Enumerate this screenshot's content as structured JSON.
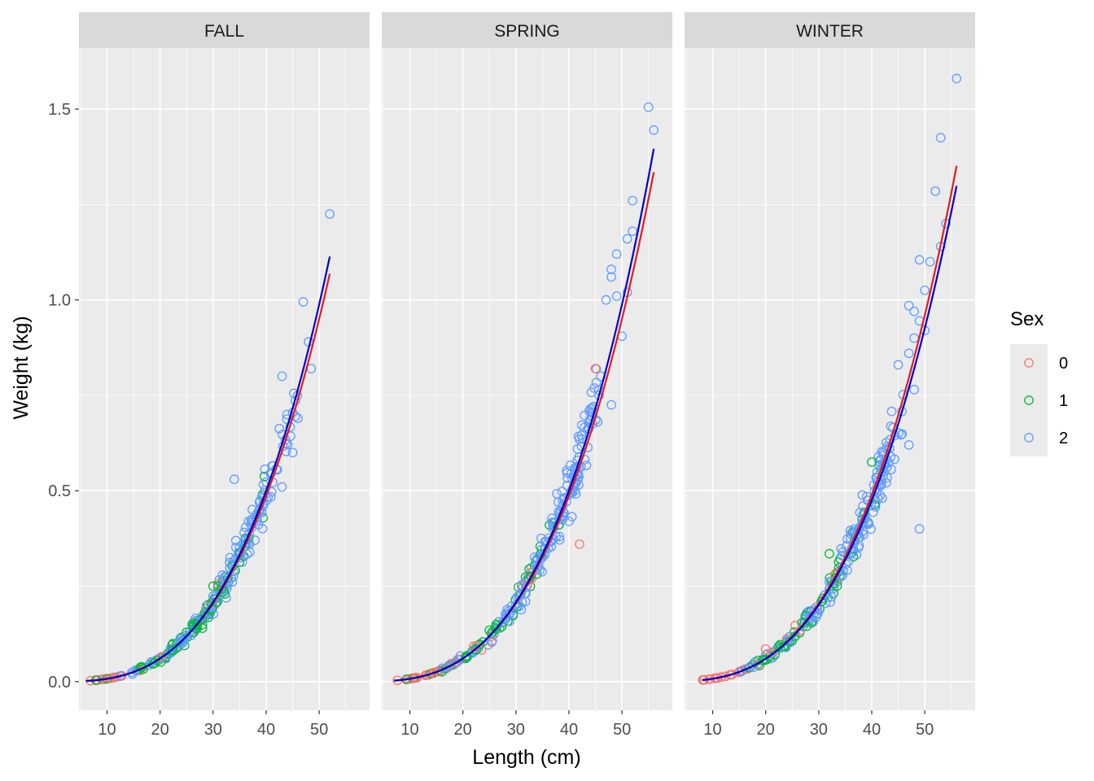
{
  "chart_data": {
    "type": "scatter",
    "xlabel": "Length (cm)",
    "ylabel": "Weight (kg)",
    "xlim": [
      4.7,
      59.5
    ],
    "ylim": [
      -0.075,
      1.66
    ],
    "x_ticks": [
      10,
      20,
      30,
      40,
      50
    ],
    "y_ticks": [
      0.0,
      0.5,
      1.0,
      1.5
    ],
    "y_tick_labels": [
      "0.0",
      "0.5",
      "1.0",
      "1.5"
    ],
    "grid": true,
    "legend": {
      "title": "Sex",
      "position": "right",
      "entries": [
        {
          "label": "0",
          "color": "#F8766D"
        },
        {
          "label": "1",
          "color": "#00BA38"
        },
        {
          "label": "2",
          "color": "#619CFF"
        }
      ]
    },
    "colors": {
      "panel_bg": "#EBEBEB",
      "strip_bg": "#D9D9D9",
      "grid": "#FFFFFF",
      "fit_line_a": "#E41A1C",
      "fit_line_b": "#0000CC"
    },
    "panels": [
      {
        "name": "FALL",
        "fit_a": {
          "a": 7.6e-06,
          "b": 3.0,
          "x_range": [
            6,
            52
          ]
        },
        "fit_b": {
          "a": 6.5e-06,
          "b": 3.05,
          "x_range": [
            6,
            52
          ]
        },
        "outliers": [
          {
            "x": 52,
            "y": 1.225,
            "sex": "2"
          },
          {
            "x": 47,
            "y": 0.995,
            "sex": "2"
          },
          {
            "x": 48,
            "y": 0.89,
            "sex": "2"
          },
          {
            "x": 48.5,
            "y": 0.82,
            "sex": "2"
          },
          {
            "x": 43,
            "y": 0.8,
            "sex": "2"
          },
          {
            "x": 46,
            "y": 0.69,
            "sex": "2"
          },
          {
            "x": 45,
            "y": 0.6,
            "sex": "2"
          },
          {
            "x": 43,
            "y": 0.51,
            "sex": "2"
          },
          {
            "x": 34,
            "y": 0.53,
            "sex": "2"
          },
          {
            "x": 36,
            "y": 0.37,
            "sex": "2"
          },
          {
            "x": 30,
            "y": 0.25,
            "sex": "1"
          },
          {
            "x": 28,
            "y": 0.14,
            "sex": "1"
          }
        ],
        "clusters": [
          {
            "from": 6,
            "to": 14,
            "n": 22,
            "spread": 0.06,
            "mix": [
              0.8,
              0.1,
              0.1
            ]
          },
          {
            "from": 14,
            "to": 22,
            "n": 34,
            "spread": 0.14,
            "mix": [
              0.15,
              0.45,
              0.4
            ]
          },
          {
            "from": 22,
            "to": 32,
            "n": 95,
            "spread": 0.13,
            "mix": [
              0.05,
              0.45,
              0.5
            ]
          },
          {
            "from": 32,
            "to": 40,
            "n": 80,
            "spread": 0.12,
            "mix": [
              0.0,
              0.15,
              0.85
            ]
          },
          {
            "from": 40,
            "to": 46,
            "n": 28,
            "spread": 0.1,
            "mix": [
              0.0,
              0.0,
              1.0
            ]
          }
        ]
      },
      {
        "name": "SPRING",
        "fit_a": {
          "a": 7.6e-06,
          "b": 3.0,
          "x_range": [
            7,
            56
          ]
        },
        "fit_b": {
          "a": 6.5e-06,
          "b": 3.05,
          "x_range": [
            7,
            56
          ]
        },
        "outliers": [
          {
            "x": 55,
            "y": 1.505,
            "sex": "2"
          },
          {
            "x": 56,
            "y": 1.445,
            "sex": "2"
          },
          {
            "x": 52,
            "y": 1.26,
            "sex": "2"
          },
          {
            "x": 52,
            "y": 1.18,
            "sex": "2"
          },
          {
            "x": 51,
            "y": 1.16,
            "sex": "2"
          },
          {
            "x": 49,
            "y": 1.12,
            "sex": "2"
          },
          {
            "x": 48,
            "y": 1.08,
            "sex": "2"
          },
          {
            "x": 48,
            "y": 1.06,
            "sex": "2"
          },
          {
            "x": 49,
            "y": 1.01,
            "sex": "2"
          },
          {
            "x": 47,
            "y": 1.0,
            "sex": "2"
          },
          {
            "x": 51,
            "y": 1.02,
            "sex": "2"
          },
          {
            "x": 50,
            "y": 0.905,
            "sex": "2"
          },
          {
            "x": 45,
            "y": 0.82,
            "sex": "0"
          },
          {
            "x": 46,
            "y": 0.8,
            "sex": "2"
          },
          {
            "x": 48,
            "y": 0.725,
            "sex": "2"
          },
          {
            "x": 42,
            "y": 0.36,
            "sex": "0"
          },
          {
            "x": 40,
            "y": 0.42,
            "sex": "2"
          }
        ],
        "clusters": [
          {
            "from": 7,
            "to": 16,
            "n": 28,
            "spread": 0.06,
            "mix": [
              0.8,
              0.1,
              0.1
            ]
          },
          {
            "from": 16,
            "to": 26,
            "n": 45,
            "spread": 0.14,
            "mix": [
              0.15,
              0.45,
              0.4
            ]
          },
          {
            "from": 26,
            "to": 34,
            "n": 60,
            "spread": 0.13,
            "mix": [
              0.05,
              0.35,
              0.6
            ]
          },
          {
            "from": 34,
            "to": 42,
            "n": 95,
            "spread": 0.12,
            "mix": [
              0.0,
              0.05,
              0.95
            ]
          },
          {
            "from": 42,
            "to": 46,
            "n": 30,
            "spread": 0.1,
            "mix": [
              0.0,
              0.0,
              1.0
            ]
          }
        ]
      },
      {
        "name": "WINTER",
        "fit_a": {
          "a": 7.1e-06,
          "b": 3.02,
          "x_range": [
            8,
            56
          ]
        },
        "fit_b": {
          "a": 7.7e-06,
          "b": 2.99,
          "x_range": [
            8,
            56
          ]
        },
        "outliers": [
          {
            "x": 56,
            "y": 1.58,
            "sex": "2"
          },
          {
            "x": 53,
            "y": 1.425,
            "sex": "2"
          },
          {
            "x": 52,
            "y": 1.285,
            "sex": "2"
          },
          {
            "x": 54,
            "y": 1.2,
            "sex": "2"
          },
          {
            "x": 53,
            "y": 1.14,
            "sex": "2"
          },
          {
            "x": 49,
            "y": 1.105,
            "sex": "2"
          },
          {
            "x": 51,
            "y": 1.1,
            "sex": "2"
          },
          {
            "x": 50,
            "y": 1.025,
            "sex": "2"
          },
          {
            "x": 47,
            "y": 0.985,
            "sex": "2"
          },
          {
            "x": 48,
            "y": 0.97,
            "sex": "2"
          },
          {
            "x": 49,
            "y": 0.945,
            "sex": "2"
          },
          {
            "x": 50,
            "y": 0.92,
            "sex": "2"
          },
          {
            "x": 48,
            "y": 0.9,
            "sex": "2"
          },
          {
            "x": 47,
            "y": 0.86,
            "sex": "2"
          },
          {
            "x": 45,
            "y": 0.83,
            "sex": "2"
          },
          {
            "x": 49,
            "y": 0.4,
            "sex": "2"
          },
          {
            "x": 47,
            "y": 0.62,
            "sex": "2"
          },
          {
            "x": 48,
            "y": 0.765,
            "sex": "2"
          },
          {
            "x": 20,
            "y": 0.085,
            "sex": "0"
          },
          {
            "x": 40,
            "y": 0.575,
            "sex": "1"
          },
          {
            "x": 32,
            "y": 0.335,
            "sex": "1"
          }
        ],
        "clusters": [
          {
            "from": 8,
            "to": 16,
            "n": 25,
            "spread": 0.06,
            "mix": [
              0.8,
              0.1,
              0.1
            ]
          },
          {
            "from": 16,
            "to": 26,
            "n": 45,
            "spread": 0.14,
            "mix": [
              0.15,
              0.4,
              0.45
            ]
          },
          {
            "from": 26,
            "to": 34,
            "n": 60,
            "spread": 0.13,
            "mix": [
              0.05,
              0.35,
              0.6
            ]
          },
          {
            "from": 34,
            "to": 42,
            "n": 90,
            "spread": 0.12,
            "mix": [
              0.0,
              0.1,
              0.9
            ]
          },
          {
            "from": 42,
            "to": 46,
            "n": 30,
            "spread": 0.1,
            "mix": [
              0.0,
              0.0,
              1.0
            ]
          }
        ]
      }
    ]
  }
}
